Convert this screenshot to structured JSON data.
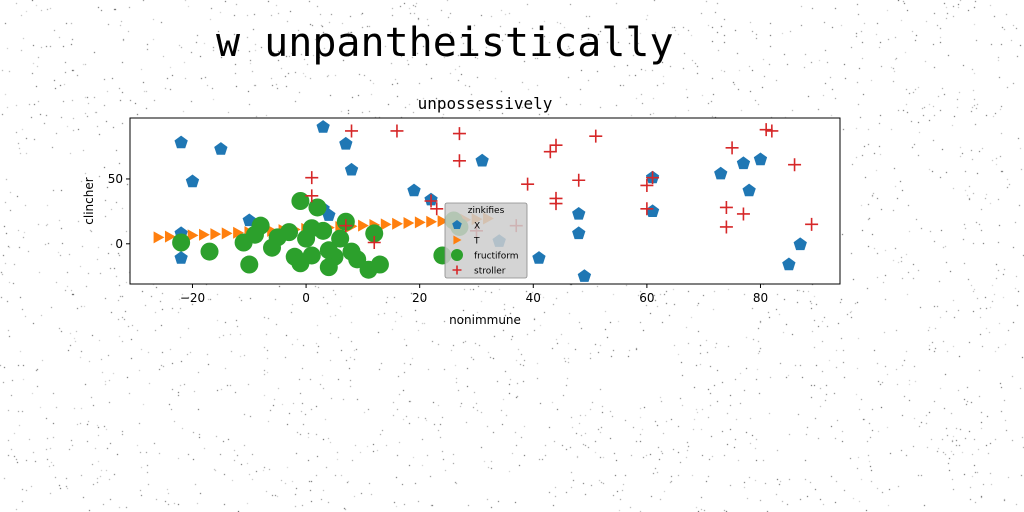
{
  "figure": {
    "suptitle": "w unpantheistically"
  },
  "chart_data": {
    "type": "scatter",
    "title": "unpossessively",
    "xlabel": "nonimmune",
    "ylabel": "clincher",
    "xlim": [
      -31,
      94
    ],
    "ylim": [
      -31,
      97
    ],
    "xticks": [
      -20,
      0,
      20,
      40,
      60,
      80
    ],
    "yticks": [
      0,
      50
    ],
    "grid": false,
    "legend": {
      "title": "zinkifies",
      "placement": "center"
    },
    "series": [
      {
        "name": "X",
        "marker": "pentagon",
        "color": "#1f77b4",
        "points": [
          [
            3,
            90
          ],
          [
            -22,
            78
          ],
          [
            -15,
            73
          ],
          [
            -20,
            48
          ],
          [
            -10,
            18
          ],
          [
            3,
            27
          ],
          [
            4,
            22
          ],
          [
            7,
            77
          ],
          [
            8,
            57
          ],
          [
            19,
            41
          ],
          [
            22,
            34
          ],
          [
            31,
            64
          ],
          [
            34,
            2
          ],
          [
            41,
            -11
          ],
          [
            48,
            23
          ],
          [
            48,
            8
          ],
          [
            49,
            -25
          ],
          [
            61,
            51
          ],
          [
            61,
            25
          ],
          [
            73,
            54
          ],
          [
            77,
            62
          ],
          [
            78,
            41
          ],
          [
            80,
            65
          ],
          [
            85,
            -16
          ],
          [
            87,
            -0.5
          ],
          [
            -22,
            8
          ],
          [
            -22,
            -11
          ]
        ]
      },
      {
        "name": "T",
        "marker": "triangle-right",
        "color": "#ff7f0e",
        "points": [
          [
            -26,
            5
          ],
          [
            -24,
            5.5
          ],
          [
            -22,
            6
          ],
          [
            -20,
            6.5
          ],
          [
            -18,
            7
          ],
          [
            -16,
            7.5
          ],
          [
            -14,
            8
          ],
          [
            -12,
            8.5
          ],
          [
            -10,
            9
          ],
          [
            -8,
            9.5
          ],
          [
            -6,
            10
          ],
          [
            -4,
            10.5
          ],
          [
            -2,
            11
          ],
          [
            0,
            11.5
          ],
          [
            2,
            12
          ],
          [
            4,
            12.5
          ],
          [
            6,
            13
          ],
          [
            8,
            13.5
          ],
          [
            10,
            14
          ],
          [
            12,
            14.5
          ],
          [
            14,
            15
          ],
          [
            16,
            15.5
          ],
          [
            18,
            16
          ],
          [
            20,
            16.5
          ],
          [
            22,
            17
          ],
          [
            24,
            17.5
          ],
          [
            26,
            18
          ],
          [
            28,
            18.5
          ],
          [
            30,
            19
          ],
          [
            32,
            19.5
          ]
        ]
      },
      {
        "name": "fructiform",
        "marker": "circle",
        "color": "#2ca02c",
        "points": [
          [
            -22,
            1
          ],
          [
            -17,
            -6
          ],
          [
            -11,
            1
          ],
          [
            -10,
            -16
          ],
          [
            -9,
            7
          ],
          [
            -8,
            14
          ],
          [
            -6,
            -3
          ],
          [
            -5,
            5
          ],
          [
            -3,
            9
          ],
          [
            -2,
            -10
          ],
          [
            -1,
            -15
          ],
          [
            0,
            4
          ],
          [
            1,
            -9
          ],
          [
            -1,
            33
          ],
          [
            1,
            12
          ],
          [
            2,
            28
          ],
          [
            3,
            10
          ],
          [
            4,
            -5
          ],
          [
            5,
            -10
          ],
          [
            4,
            -18
          ],
          [
            6,
            4
          ],
          [
            7,
            17
          ],
          [
            8,
            -6
          ],
          [
            9,
            -12
          ],
          [
            11,
            -20
          ],
          [
            12,
            8
          ],
          [
            13,
            -16
          ],
          [
            24,
            -9
          ],
          [
            26,
            18
          ],
          [
            27,
            13
          ]
        ]
      },
      {
        "name": "stroller",
        "marker": "plus",
        "color": "#d62728",
        "points": [
          [
            8,
            87
          ],
          [
            16,
            87
          ],
          [
            27,
            85
          ],
          [
            27,
            64
          ],
          [
            44,
            76
          ],
          [
            43,
            71
          ],
          [
            51,
            83
          ],
          [
            1,
            51
          ],
          [
            1,
            37
          ],
          [
            22,
            33
          ],
          [
            23,
            27
          ],
          [
            44,
            35
          ],
          [
            44,
            31
          ],
          [
            39,
            46
          ],
          [
            48,
            49
          ],
          [
            60,
            45
          ],
          [
            60,
            27
          ],
          [
            61,
            51
          ],
          [
            75,
            74
          ],
          [
            82,
            87
          ],
          [
            81,
            88
          ],
          [
            86,
            61
          ],
          [
            74,
            28
          ],
          [
            74,
            13
          ],
          [
            77,
            23
          ],
          [
            89,
            15
          ],
          [
            37,
            14
          ],
          [
            12,
            1
          ],
          [
            7,
            14
          ],
          [
            30,
            10
          ]
        ]
      }
    ]
  }
}
